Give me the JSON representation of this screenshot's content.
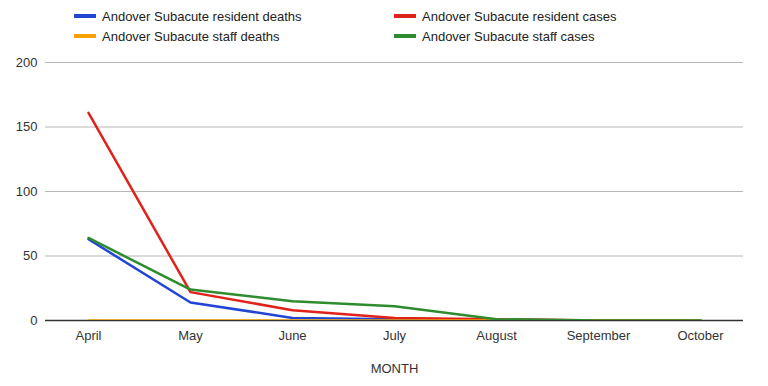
{
  "chart_data": {
    "type": "line",
    "x_label": "MONTH",
    "categories": [
      "April",
      "May",
      "June",
      "July",
      "August",
      "September",
      "October"
    ],
    "series": [
      {
        "name": "Andover Subacute resident deaths",
        "color": "#2146d6",
        "values": [
          63,
          14,
          2,
          1,
          0,
          0,
          0
        ]
      },
      {
        "name": "Andover Subacute resident cases",
        "color": "#e0221b",
        "values": [
          161,
          22,
          8,
          2,
          1,
          0,
          0
        ]
      },
      {
        "name": "Andover Subacute staff deaths",
        "color": "#f4a300",
        "values": [
          0,
          0,
          0,
          0,
          0,
          0,
          0
        ]
      },
      {
        "name": "Andover Subacute staff cases",
        "color": "#2e8b2e",
        "values": [
          64,
          24,
          15,
          11,
          1,
          0,
          0
        ]
      }
    ],
    "ylim": [
      0,
      200
    ],
    "yticks": [
      0,
      50,
      100,
      150,
      200
    ],
    "grid": true,
    "legend": "top"
  }
}
